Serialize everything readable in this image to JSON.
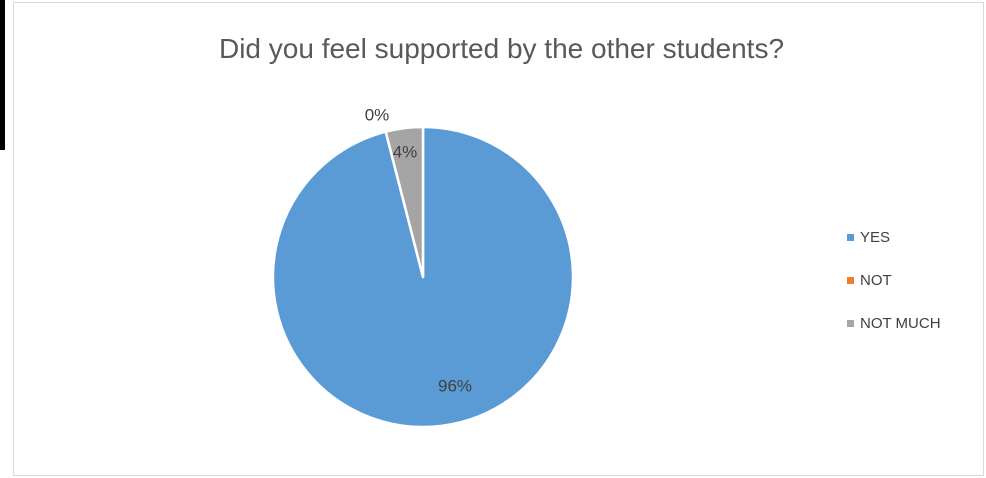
{
  "chart_data": {
    "type": "pie",
    "title": "Did you feel supported by the other students?",
    "categories": [
      "YES",
      "NOT",
      "NOT MUCH"
    ],
    "values": [
      96,
      0,
      4
    ],
    "data_labels": [
      "96%",
      "0%",
      "4%"
    ],
    "colors": [
      "#5b9bd5",
      "#ed7d31",
      "#a5a5a5"
    ],
    "legend_position": "right"
  }
}
